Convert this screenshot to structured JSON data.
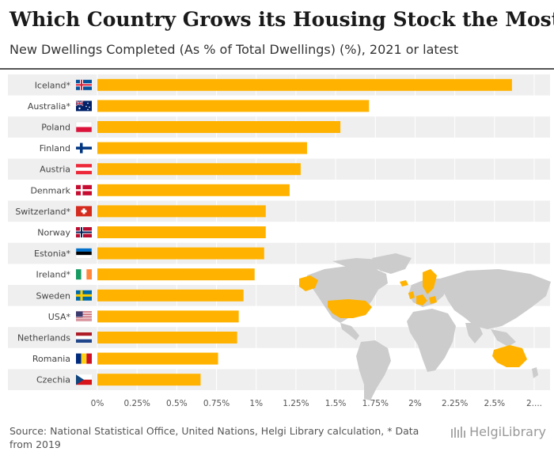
{
  "title": "Which Country Grows its Housing Stock the Most?",
  "subtitle": "New Dwellings Completed (As % of Total Dwellings) (%), 2021 or latest",
  "source": "Source: National Statistical Office, United Nations, Helgi Library calculation, * Data from 2019",
  "logo": "HelgiLibrary",
  "colors": {
    "bar": "#FFB300",
    "band": "#EFEFEF",
    "map_land": "#CCCCCC",
    "map_highlight": "#FFB300"
  },
  "chart_data": {
    "type": "bar",
    "orientation": "horizontal",
    "categories": [
      "Iceland*",
      "Australia*",
      "Poland",
      "Finland",
      "Austria",
      "Denmark",
      "Switzerland*",
      "Norway",
      "Estonia*",
      "Ireland*",
      "Sweden",
      "USA*",
      "Netherlands",
      "Romania",
      "Czechia"
    ],
    "values": [
      2.61,
      1.71,
      1.53,
      1.32,
      1.28,
      1.21,
      1.06,
      1.06,
      1.05,
      0.99,
      0.92,
      0.89,
      0.88,
      0.76,
      0.65
    ],
    "flags": [
      "iceland-flag",
      "australia-flag",
      "poland-flag",
      "finland-flag",
      "austria-flag",
      "denmark-flag",
      "switzerland-flag",
      "norway-flag",
      "estonia-flag",
      "ireland-flag",
      "sweden-flag",
      "usa-flag",
      "netherlands-flag",
      "romania-flag",
      "czechia-flag"
    ],
    "xlim": [
      0,
      2.75
    ],
    "xticks": [
      0,
      0.25,
      0.5,
      0.75,
      1,
      1.25,
      1.5,
      1.75,
      2,
      2.25,
      2.5,
      2.75
    ],
    "xtick_labels": [
      "0%",
      "0.25%",
      "0.5%",
      "0.75%",
      "1%",
      "1.25%",
      "1.5%",
      "1.75%",
      "2%",
      "2.25%",
      "2.5%",
      "2...."
    ],
    "grid": true,
    "legend": "none"
  }
}
